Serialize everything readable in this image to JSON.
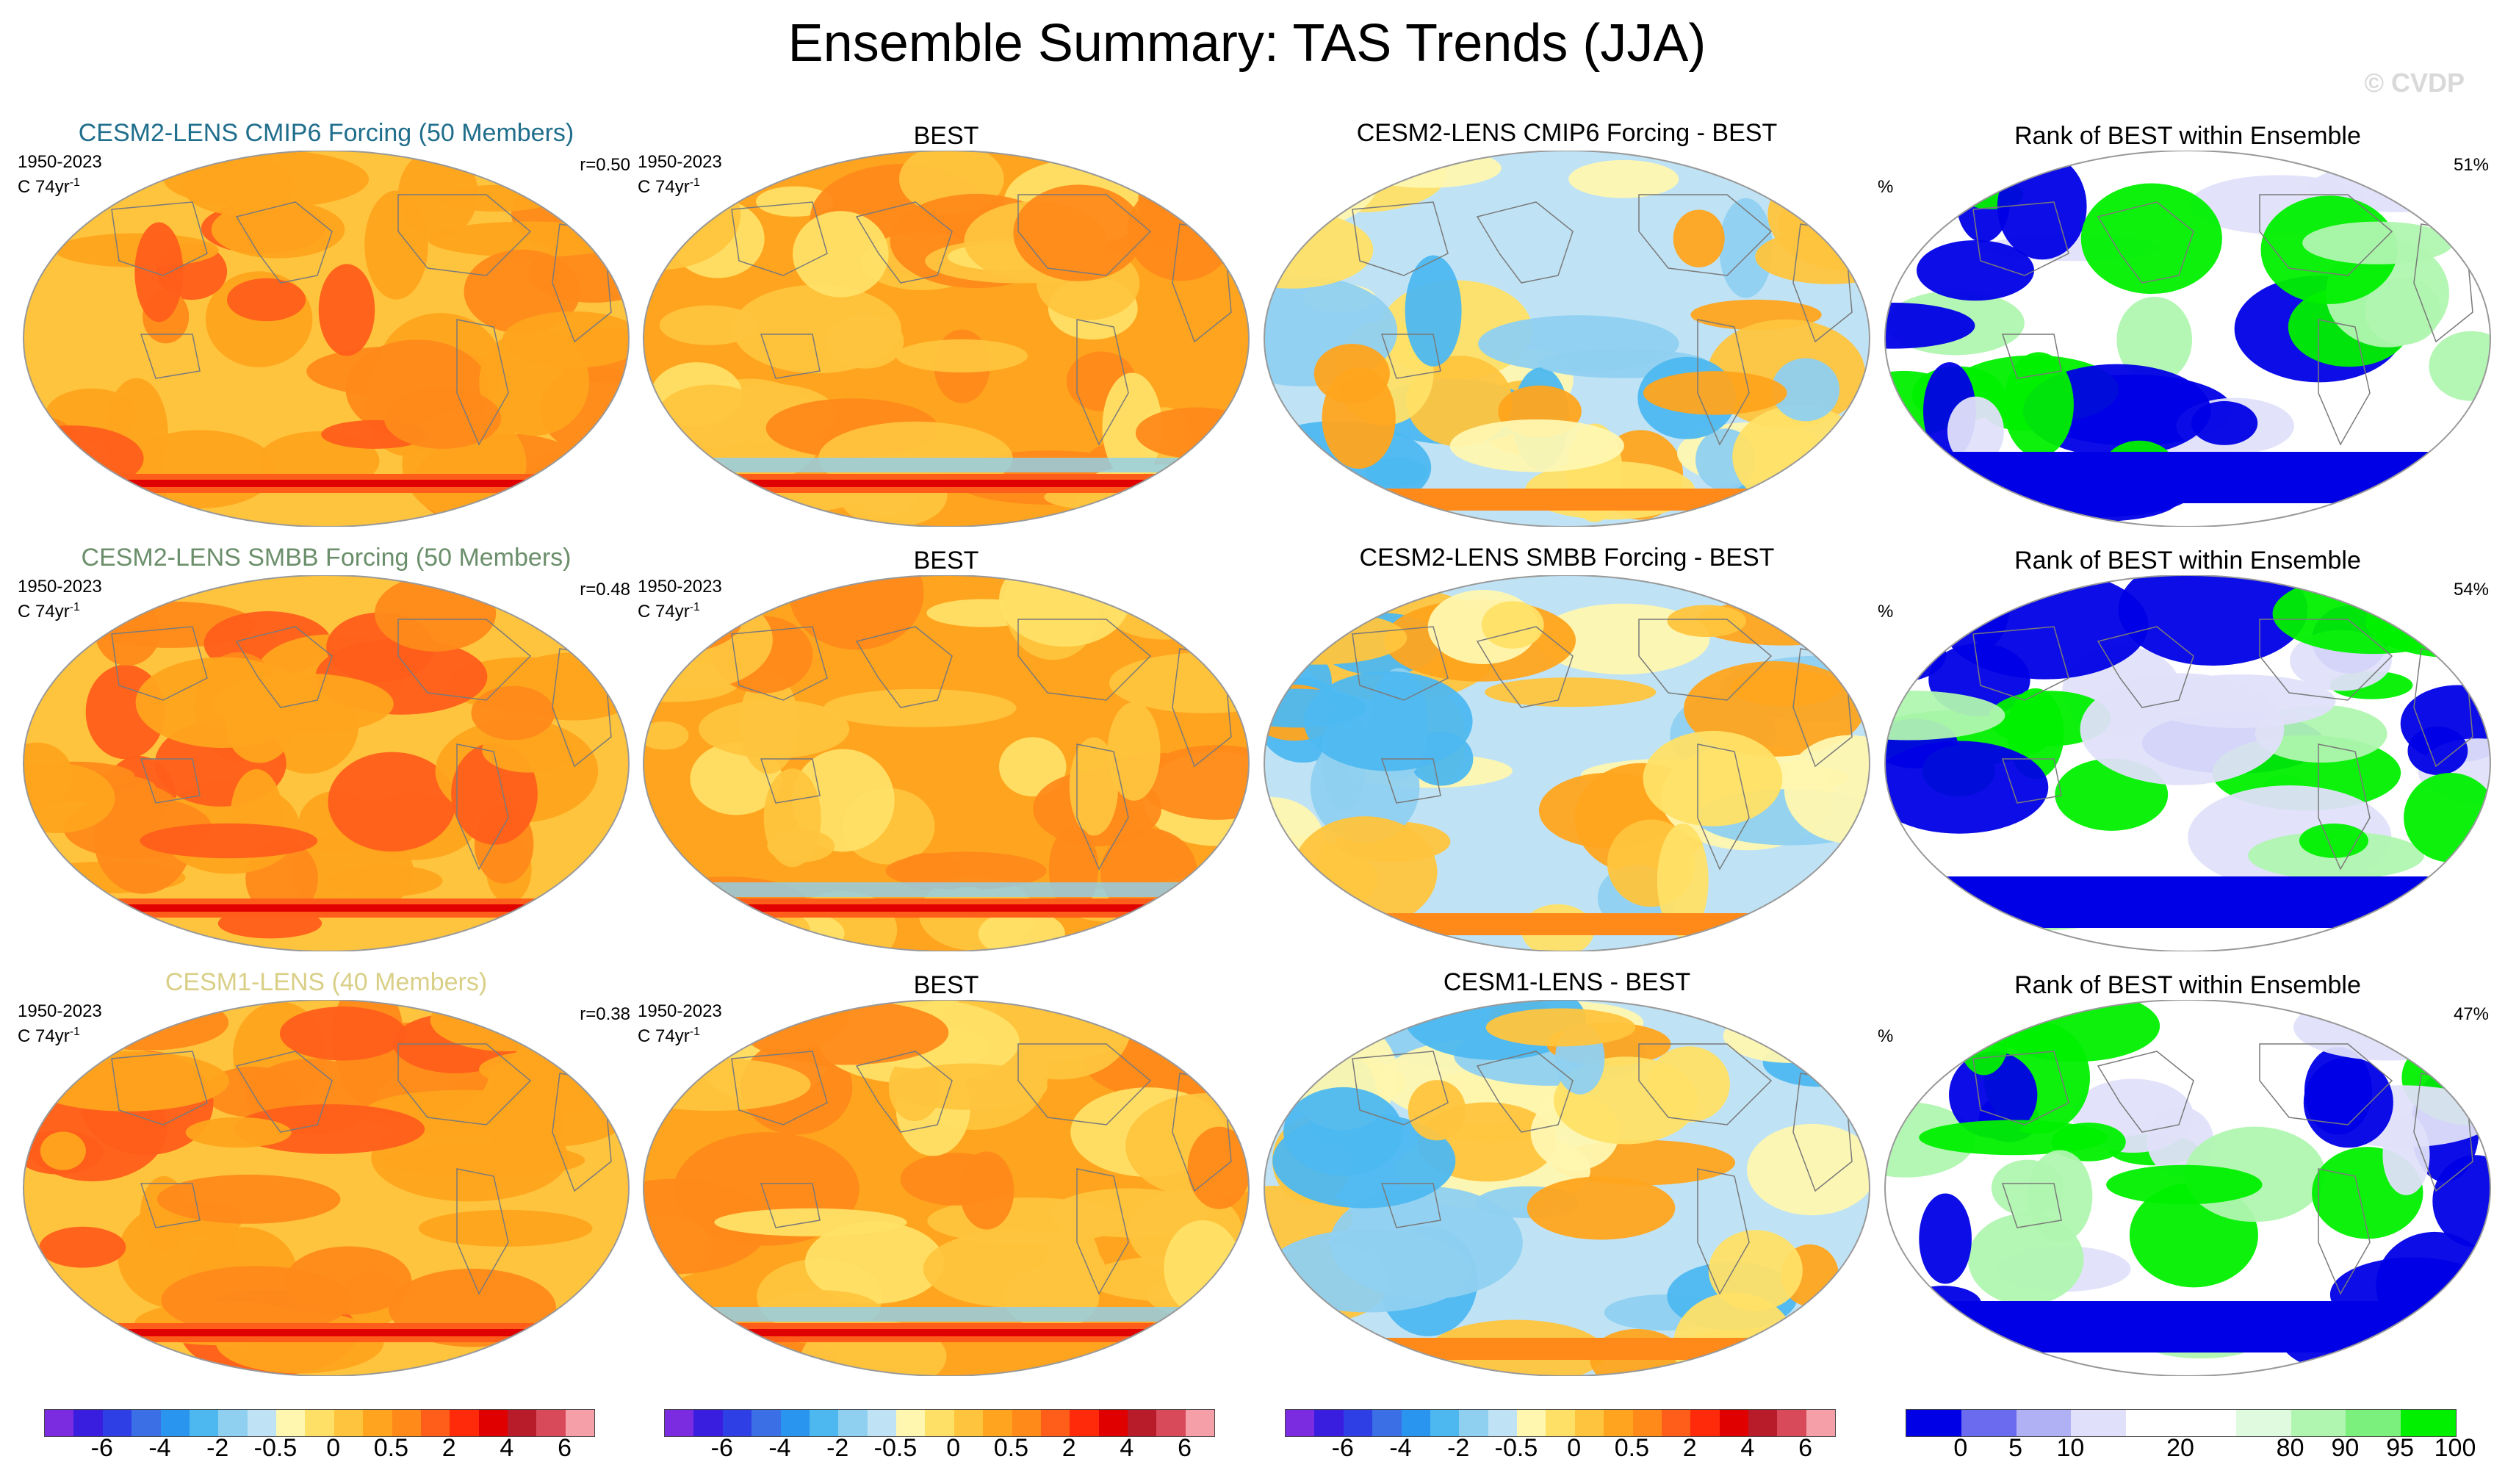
{
  "title": "Ensemble Summary: TAS Trends (JJA)",
  "watermark": "© CVDP",
  "rows": [
    {
      "ensemble_title": "CESM2-LENS CMIP6 Forcing (50 Members)",
      "ensemble_title_color": "#1f6e8c",
      "years": "1950-2023",
      "units": "C 74yr",
      "units_exp": "-1",
      "r_value": "r=0.50",
      "obs_title": "BEST",
      "diff_title": "CESM2-LENS CMIP6 Forcing - BEST",
      "rank_title": "Rank of BEST within Ensemble",
      "rank_units": "%",
      "rank_percent": "51%"
    },
    {
      "ensemble_title": "CESM2-LENS SMBB Forcing (50 Members)",
      "ensemble_title_color": "#6b8f6b",
      "years": "1950-2023",
      "units": "C 74yr",
      "units_exp": "-1",
      "r_value": "r=0.48",
      "obs_title": "BEST",
      "diff_title": "CESM2-LENS SMBB Forcing - BEST",
      "rank_title": "Rank of BEST within Ensemble",
      "rank_units": "%",
      "rank_percent": "54%"
    },
    {
      "ensemble_title": "CESM1-LENS (40 Members)",
      "ensemble_title_color": "#d9cf86",
      "years": "1950-2023",
      "units": "C 74yr",
      "units_exp": "-1",
      "r_value": "r=0.38",
      "obs_title": "BEST",
      "diff_title": "CESM1-LENS - BEST",
      "rank_title": "Rank of BEST within Ensemble",
      "rank_units": "%",
      "rank_percent": "47%"
    }
  ],
  "colorbars": {
    "trend": {
      "colors": [
        "#7b2be0",
        "#3a1ee0",
        "#2e3fe6",
        "#3a6fe6",
        "#2a95ee",
        "#4db8f0",
        "#8fd0f0",
        "#bfe3f5",
        "#fff7b0",
        "#ffe066",
        "#ffc43d",
        "#ffa41e",
        "#ff8a1a",
        "#ff5e1a",
        "#ff2a0a",
        "#e00000",
        "#b81c2a",
        "#d84a5a",
        "#f5a0a8"
      ],
      "labels": [
        "-6",
        "-4",
        "-2",
        "-0.5",
        "0",
        "0.5",
        "2",
        "4",
        "6"
      ]
    },
    "rank": {
      "colors": [
        "#0000e6",
        "#6b6bf0",
        "#b0b0f5",
        "#e0e0fa",
        "#ffffff",
        "#ffffff",
        "#e0fae0",
        "#b0f5b0",
        "#7cf07c",
        "#00f000"
      ],
      "labels": [
        "0",
        "5",
        "10",
        "20",
        "80",
        "90",
        "95",
        "100"
      ]
    }
  }
}
